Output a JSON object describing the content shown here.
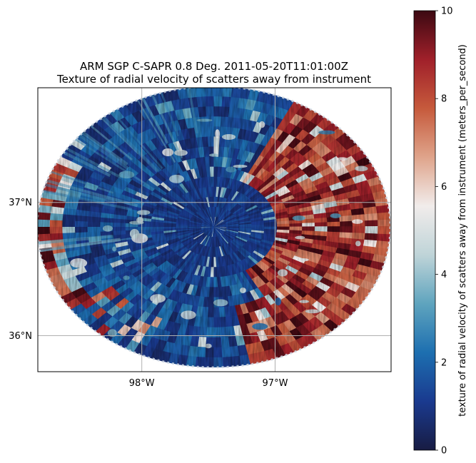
{
  "chart_data": {
    "type": "heatmap",
    "title_line1": "ARM SGP C-SAPR 0.8 Deg. 2011-05-20T11:01:00Z",
    "title_line2": "Texture of radial velocity of scatters away from instrument",
    "projection": "PlateCarree (radar PPI, ~125 km range ring)",
    "x_ticks": [
      {
        "value": -98.0,
        "label": "98°W"
      },
      {
        "value": -97.0,
        "label": "97°W"
      }
    ],
    "y_ticks": [
      {
        "value": 36.0,
        "label": "36°N"
      },
      {
        "value": 37.0,
        "label": "37°N"
      }
    ],
    "xlim": [
      -98.78,
      -96.13
    ],
    "ylim": [
      35.73,
      37.86
    ],
    "radar_center": {
      "lon": -97.46,
      "lat": 36.79
    },
    "grid": true,
    "colorbar": {
      "label": "texture of radial velocity of scatters away from instrument (meters_per_second)",
      "min": 0,
      "max": 10,
      "ticks": [
        0,
        2,
        4,
        6,
        8,
        10
      ],
      "colormap": "balance",
      "stops": [
        "#181c43",
        "#1a3a8f",
        "#1d6fb0",
        "#5fa4be",
        "#bfd4d8",
        "#f1eceb",
        "#dfa48b",
        "#c65a3c",
        "#a0202a",
        "#3c0912"
      ]
    },
    "field_description": {
      "low_region": {
        "value_range": [
          0.5,
          2.5
        ],
        "description": "western and central sectors"
      },
      "high_region": {
        "value_range": [
          7,
          10
        ],
        "description": "eastern sector and far-west rim"
      }
    }
  }
}
